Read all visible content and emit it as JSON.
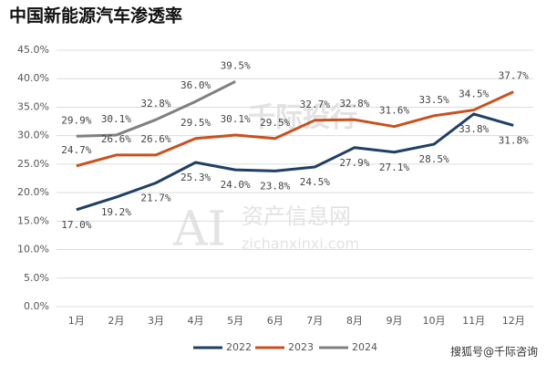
{
  "chart_data": {
    "type": "line",
    "title": "中国新能源汽车渗透率",
    "categories": [
      "1月",
      "2月",
      "3月",
      "4月",
      "5月",
      "6月",
      "7月",
      "8月",
      "9月",
      "10月",
      "11月",
      "12月"
    ],
    "series": [
      {
        "name": "2022",
        "color": "#1f3f66",
        "values": [
          17.0,
          19.2,
          21.7,
          25.3,
          24.0,
          23.8,
          24.5,
          27.9,
          27.1,
          28.5,
          33.8,
          31.8
        ],
        "value_labels": [
          "17.0%",
          "19.2%",
          "21.7%",
          "25.3%",
          "24.0%",
          "23.8%",
          "24.5%",
          "27.9%",
          "27.1%",
          "28.5%",
          "33.8%",
          "31.8%"
        ]
      },
      {
        "name": "2023",
        "color": "#c9511e",
        "values": [
          24.7,
          26.6,
          26.6,
          29.5,
          30.1,
          29.5,
          32.7,
          32.8,
          31.6,
          33.5,
          34.5,
          37.7
        ],
        "value_labels": [
          "24.7%",
          "26.6%",
          "26.6%",
          "29.5%",
          "30.1%",
          "29.5%",
          "32.7%",
          "32.8%",
          "31.6%",
          "33.5%",
          "34.5%",
          "37.7%"
        ]
      },
      {
        "name": "2024",
        "color": "#808080",
        "values": [
          29.9,
          30.1,
          32.8,
          36.0,
          39.5,
          null,
          null,
          null,
          null,
          null,
          null,
          null
        ],
        "value_labels": [
          "29.9%",
          "30.1%",
          "32.8%",
          "36.0%",
          "39.5%",
          null,
          null,
          null,
          null,
          null,
          null,
          null
        ]
      }
    ],
    "ylim": [
      0,
      45
    ],
    "yticks": [
      {
        "value": 0,
        "label": "0.0%"
      },
      {
        "value": 5,
        "label": "5.0%"
      },
      {
        "value": 10,
        "label": "10.0%"
      },
      {
        "value": 15,
        "label": "15.0%"
      },
      {
        "value": 20,
        "label": "20.0%"
      },
      {
        "value": 25,
        "label": "25.0%"
      },
      {
        "value": 30,
        "label": "30.0%"
      },
      {
        "value": 35,
        "label": "35.0%"
      },
      {
        "value": 40,
        "label": "40.0%"
      },
      {
        "value": 45,
        "label": "45.0%"
      }
    ],
    "grid": true,
    "legend": "bottom",
    "annotations": [
      "千际投行",
      "AI",
      "资产信息网",
      "zichanxinxi.com",
      "搜狐号@千际咨询"
    ]
  }
}
